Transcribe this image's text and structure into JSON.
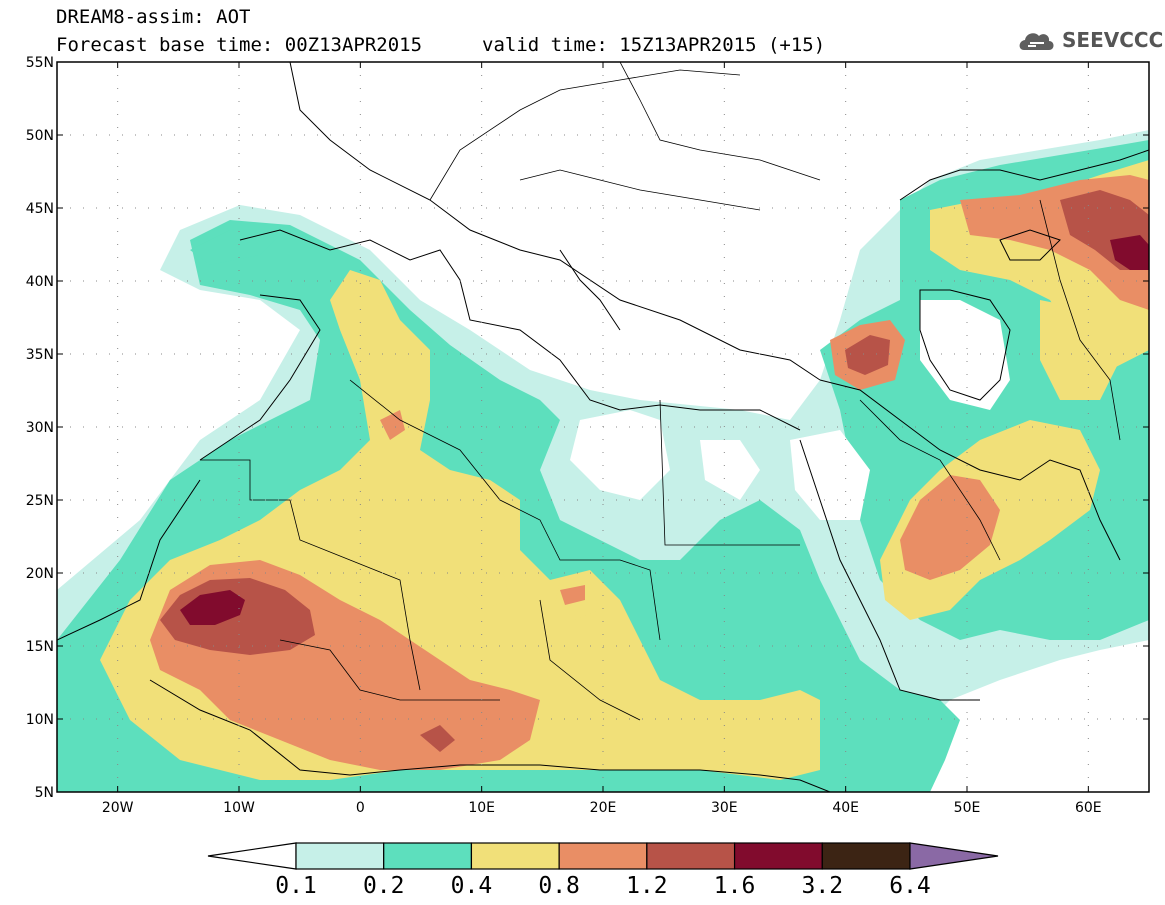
{
  "title": {
    "line1": "DREAM8-assim: AOT",
    "base_time": "Forecast base time: 00Z13APR2015",
    "valid_time": "valid time: 15Z13APR2015 (+15)"
  },
  "logo": {
    "text": "SEEVCCC",
    "icon": "cloud-icon"
  },
  "map": {
    "lat_labels": [
      "55N",
      "50N",
      "45N",
      "40N",
      "35N",
      "30N",
      "25N",
      "20N",
      "15N",
      "10N",
      "5N"
    ],
    "lon_labels": [
      "20W",
      "10W",
      "0",
      "10E",
      "20E",
      "30E",
      "40E",
      "50E",
      "60E"
    ],
    "extent": {
      "lon": [
        -25,
        65
      ],
      "lat": [
        5,
        55
      ]
    }
  },
  "colorbar": {
    "labels": [
      "0.1",
      "0.2",
      "0.4",
      "0.8",
      "1.2",
      "1.6",
      "3.2",
      "6.4"
    ],
    "colors": [
      "#ffffff",
      "#c6f0e8",
      "#5ddfbd",
      "#f1e079",
      "#e98e65",
      "#b75348",
      "#810b2d",
      "#3c2414",
      "#8a69a5"
    ]
  },
  "colors": {
    "level1": "#c6f0e8",
    "level2": "#5ddfbd",
    "level3": "#f1e079",
    "level4": "#e98e65",
    "level5": "#b75348",
    "level6": "#810b2d"
  }
}
